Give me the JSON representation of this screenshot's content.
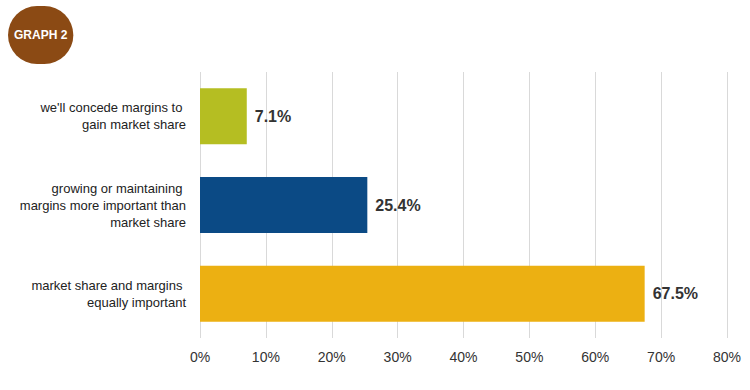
{
  "chart_data": {
    "type": "bar",
    "orientation": "horizontal",
    "title": "GRAPH 2",
    "categories": [
      "we'll concede margins to gain market share",
      "growing or maintaining margins more important than market share",
      "market share and margins equally important"
    ],
    "values": [
      7.1,
      25.4,
      67.5
    ],
    "value_labels": [
      "7.1%",
      "25.4%",
      "67.5%"
    ],
    "colors": [
      "#b5be22",
      "#0b4a85",
      "#ecb012"
    ],
    "data_labels": true,
    "xlim": [
      0,
      80
    ],
    "xticks": [
      {
        "value": 0,
        "label": "0%"
      },
      {
        "value": 10,
        "label": "10%"
      },
      {
        "value": 20,
        "label": "20%"
      },
      {
        "value": 30,
        "label": "30%"
      },
      {
        "value": 40,
        "label": "40%"
      },
      {
        "value": 50,
        "label": "50%"
      },
      {
        "value": 60,
        "label": "60%"
      },
      {
        "value": 70,
        "label": "70%"
      },
      {
        "value": 80,
        "label": "80%"
      }
    ],
    "grid": true
  }
}
